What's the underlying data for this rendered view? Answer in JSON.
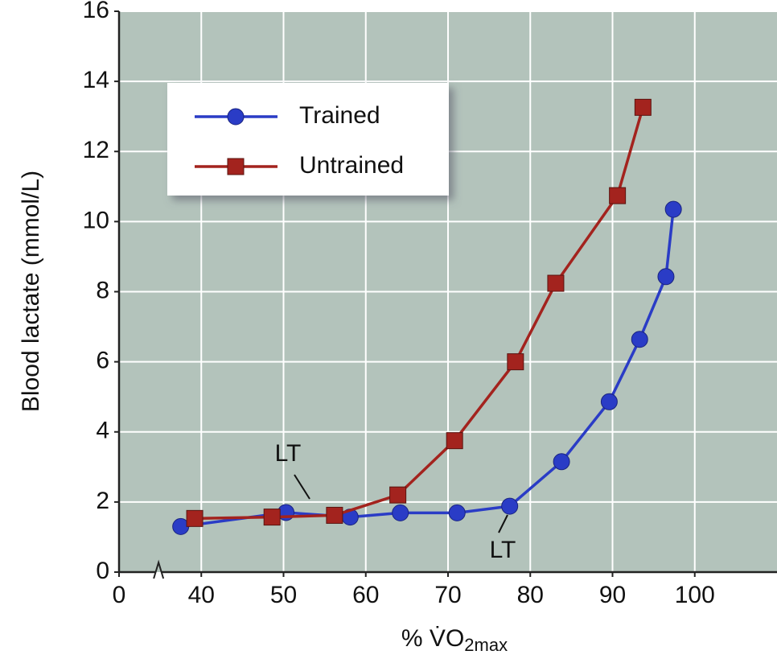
{
  "chart_data": {
    "type": "line",
    "y_label": "Blood lactate (mmol/L)",
    "x_label": {
      "main": "% V̇O",
      "sub": "2max"
    },
    "xlim": [
      0,
      110
    ],
    "x_break": [
      0,
      30
    ],
    "xticks": [
      0,
      40,
      50,
      60,
      70,
      80,
      90,
      100
    ],
    "ylim": [
      0,
      16
    ],
    "yticks": [
      0,
      2,
      4,
      6,
      8,
      10,
      12,
      14,
      16
    ],
    "grid": true,
    "legend": "upper left",
    "series": [
      {
        "name": "Trained",
        "color": "#2a3cc6",
        "marker": "circle",
        "x": [
          37.5,
          50.3,
          58.1,
          64.2,
          71.1,
          77.5,
          83.8,
          89.6,
          93.3,
          96.5,
          97.4
        ],
        "values": [
          1.3,
          1.7,
          1.57,
          1.69,
          1.69,
          1.88,
          3.15,
          4.86,
          6.64,
          8.43,
          10.35
        ]
      },
      {
        "name": "Untrained",
        "color": "#a3231e",
        "marker": "square",
        "x": [
          39.2,
          48.6,
          56.2,
          63.9,
          70.8,
          78.2,
          83.1,
          90.6,
          93.7
        ],
        "values": [
          1.53,
          1.57,
          1.62,
          2.2,
          3.75,
          6.0,
          8.24,
          10.74,
          13.26
        ]
      }
    ],
    "annotations": [
      {
        "text": "LT"
      },
      {
        "text": "LT"
      }
    ]
  }
}
